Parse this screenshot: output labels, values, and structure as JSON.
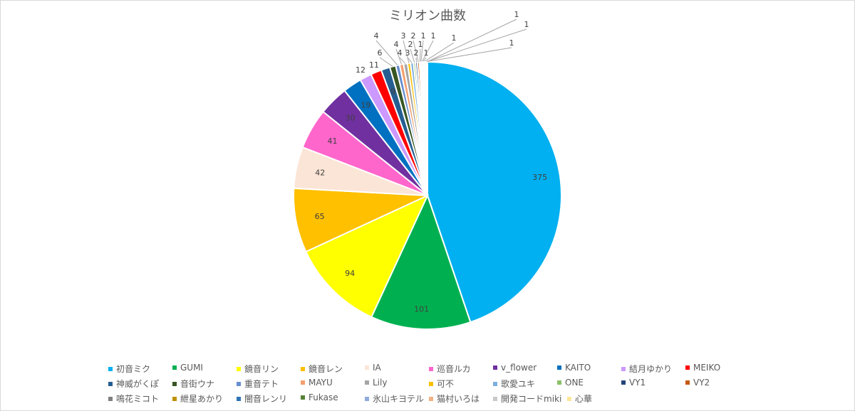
{
  "chart_data": {
    "type": "pie",
    "title": "ミリオン曲数",
    "legend_position": "bottom",
    "start_angle": "top, clockwise",
    "slices": [
      {
        "label": "初音ミク",
        "value": 375,
        "color": "#00b0f0"
      },
      {
        "label": "GUMI",
        "value": 101,
        "color": "#00b050"
      },
      {
        "label": "鏡音リン",
        "value": 94,
        "color": "#ffff00"
      },
      {
        "label": "鏡音レン",
        "value": 65,
        "color": "#ffc000"
      },
      {
        "label": "IA",
        "value": 42,
        "color": "#fbe5d6"
      },
      {
        "label": "巡音ルカ",
        "value": 41,
        "color": "#ff66cc"
      },
      {
        "label": "v_flower",
        "value": 30,
        "color": "#7030a0"
      },
      {
        "label": "KAITO",
        "value": 19,
        "color": "#0070c0"
      },
      {
        "label": "結月ゆかり",
        "value": 12,
        "color": "#cc99ff"
      },
      {
        "label": "MEIKO",
        "value": 11,
        "color": "#ff0000"
      },
      {
        "label": "神威がくぽ",
        "value": 9,
        "color": "#255e91"
      },
      {
        "label": "音街ウナ",
        "value": 6,
        "color": "#375623"
      },
      {
        "label": "重音テト",
        "value": 4,
        "color": "#698ed0"
      },
      {
        "label": "MAYU",
        "value": 4,
        "color": "#f4a070"
      },
      {
        "label": "Lily",
        "value": 4,
        "color": "#a5a5a5"
      },
      {
        "label": "可不",
        "value": 3,
        "color": "#ffc000"
      },
      {
        "label": "歌愛ユキ",
        "value": 3,
        "color": "#7cafdd"
      },
      {
        "label": "ONE",
        "value": 2,
        "color": "#8cc168"
      },
      {
        "label": "VY1",
        "value": 2,
        "color": "#264478"
      },
      {
        "label": "VY2",
        "value": 2,
        "color": "#c55a11"
      },
      {
        "label": "鳴花ミコト",
        "value": 1,
        "color": "#7f7f7f"
      },
      {
        "label": "紲星あかり",
        "value": 1,
        "color": "#bf9000"
      },
      {
        "label": "闇音レンリ",
        "value": 1,
        "color": "#2e75b6"
      },
      {
        "label": "Fukase",
        "value": 1,
        "color": "#548235"
      },
      {
        "label": "氷山キヨテル",
        "value": 1,
        "color": "#8faadc"
      },
      {
        "label": "猫村いろは",
        "value": 1,
        "color": "#f4b183"
      },
      {
        "label": "開発コードmiki",
        "value": 1,
        "color": "#c9c9c9"
      },
      {
        "label": "心華",
        "value": 1,
        "color": "#ffe699"
      }
    ]
  }
}
